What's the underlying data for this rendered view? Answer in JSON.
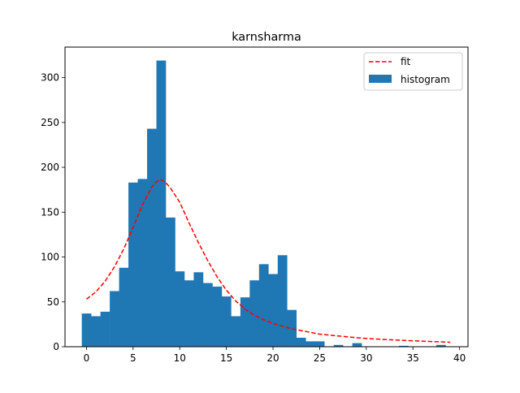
{
  "chart_data": {
    "type": "bar",
    "title": "karnsharma",
    "xlabel": "",
    "ylabel": "",
    "xlim": [
      -2.3,
      40.9
    ],
    "ylim": [
      0,
      334
    ],
    "xticks": [
      0,
      5,
      10,
      15,
      20,
      25,
      30,
      35,
      40
    ],
    "yticks": [
      0,
      50,
      100,
      150,
      200,
      250,
      300
    ],
    "grid": false,
    "legend_position": "top-right",
    "series": [
      {
        "name": "histogram",
        "kind": "histogram",
        "color": "#1f77b4",
        "bin_edges": [
          -0.5,
          0.5,
          1.5,
          2.5,
          3.5,
          4.5,
          5.5,
          6.5,
          7.5,
          8.5,
          9.5,
          10.5,
          11.5,
          12.5,
          13.5,
          14.5,
          15.5,
          16.5,
          17.5,
          18.5,
          19.5,
          20.5,
          21.5,
          22.5,
          23.5,
          24.5,
          25.5,
          26.5,
          27.5,
          28.5,
          29.5,
          30.5,
          31.5,
          32.5,
          33.5,
          34.5,
          35.5,
          36.5,
          37.5,
          38.5
        ],
        "values": [
          37,
          34,
          39,
          62,
          88,
          183,
          187,
          243,
          319,
          144,
          84,
          74,
          83,
          71,
          67,
          56,
          34,
          55,
          74,
          92,
          81,
          102,
          41,
          10,
          6,
          6,
          0,
          2,
          0,
          4,
          0,
          0,
          0,
          0,
          1,
          0,
          0,
          0,
          2
        ]
      },
      {
        "name": "fit",
        "kind": "line",
        "color": "#ff0000",
        "dash": "dashed",
        "x": [
          0,
          1,
          2,
          3,
          4,
          5,
          6,
          7,
          7.5,
          8,
          8.5,
          9,
          10,
          11,
          12,
          13,
          14,
          15,
          16,
          17,
          18,
          19,
          20,
          21,
          22,
          23,
          24,
          25,
          27,
          29,
          31,
          33,
          35,
          37,
          39
        ],
        "y": [
          53,
          61,
          73,
          89,
          109,
          133,
          158,
          178,
          184,
          186,
          183,
          177,
          161,
          138,
          116,
          96,
          78,
          63,
          51,
          42,
          35,
          30,
          26,
          23,
          20,
          18,
          16,
          14,
          12,
          10,
          8.6,
          7.5,
          6.6,
          5.8,
          5
        ]
      }
    ],
    "legend": [
      {
        "label": "fit",
        "swatch": "dashed-line",
        "color": "#ff0000"
      },
      {
        "label": "histogram",
        "swatch": "patch",
        "color": "#1f77b4"
      }
    ]
  }
}
